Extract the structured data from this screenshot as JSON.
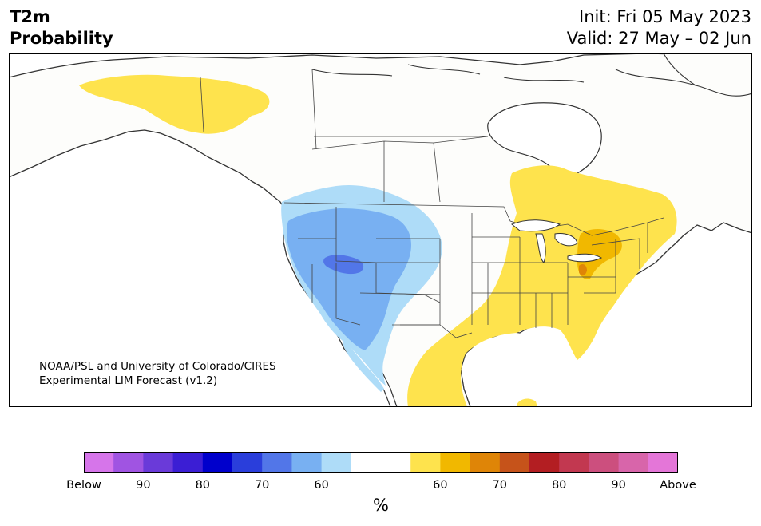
{
  "header": {
    "variable": "T2m",
    "kind": "Probability",
    "init": "Init: Fri 05 May 2023",
    "valid": "Valid: 27 May – 02 Jun"
  },
  "credit": {
    "line1": "NOAA/PSL and University of Colorado/CIRES",
    "line2": "Experimental LIM Forecast (v1.2)"
  },
  "colorbar": {
    "units": "%",
    "colors": [
      "#d675ea",
      "#a054e2",
      "#6a3ad9",
      "#3b1ed4",
      "#0000cc",
      "#2a3edb",
      "#5276e8",
      "#78b0f2",
      "#aedcf8",
      "#ffffff",
      "#ffffff",
      "#fee34d",
      "#f1b800",
      "#df8507",
      "#c6531a",
      "#b31e22",
      "#c23850",
      "#cc4f7e",
      "#d865aa",
      "#e476d8"
    ],
    "labels": [
      {
        "text": "Below",
        "stop": 0
      },
      {
        "text": "90",
        "stop": 2
      },
      {
        "text": "80",
        "stop": 4
      },
      {
        "text": "70",
        "stop": 6
      },
      {
        "text": "60",
        "stop": 8
      },
      {
        "text": "60",
        "stop": 12
      },
      {
        "text": "70",
        "stop": 14
      },
      {
        "text": "80",
        "stop": 16
      },
      {
        "text": "90",
        "stop": 18
      },
      {
        "text": "Above",
        "stop": 20
      }
    ]
  },
  "map_colors": {
    "land": "#fdfdfb",
    "ocean": "#ffffff",
    "coast": "#333333",
    "border": "#444444",
    "above_60": "#fee34d",
    "above_70": "#f1b800",
    "above_80": "#df8507",
    "below_60": "#aedcf8",
    "below_70": "#78b0f2",
    "below_80": "#5276e8"
  }
}
